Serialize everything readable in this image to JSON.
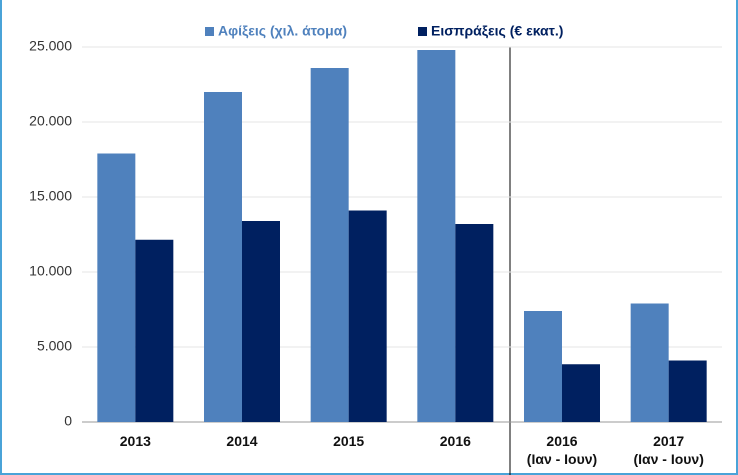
{
  "chart_data": {
    "type": "bar",
    "categories": [
      "2013",
      "2014",
      "2015",
      "2016",
      "2016\n(Ιαν - Ιουν)",
      "2017\n(Ιαν - Ιουν)"
    ],
    "series": [
      {
        "name": "Αφίξεις (χιλ. άτομα)",
        "color": "#4f81bd",
        "values": [
          17900,
          22000,
          23600,
          24800,
          7400,
          7900
        ]
      },
      {
        "name": "Εισπράξεις (€ εκατ.)",
        "color": "#002060",
        "values": [
          12150,
          13400,
          14100,
          13200,
          3850,
          4100
        ]
      }
    ],
    "ylim": [
      0,
      25000
    ],
    "yticks": [
      0,
      {
        "value": 5000,
        "label": "5.000"
      },
      {
        "value": 10000,
        "label": "10.000"
      },
      {
        "value": 15000,
        "label": "15.000"
      },
      {
        "value": 20000,
        "label": "20.000"
      },
      {
        "value": 25000,
        "label": "25.000"
      }
    ],
    "grid": true,
    "legend": "top"
  }
}
